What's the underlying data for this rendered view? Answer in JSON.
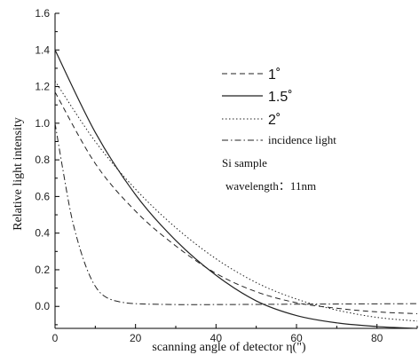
{
  "chart_data": {
    "type": "line",
    "title": "",
    "xlabel": "scanning angle of detector η(\")",
    "ylabel": "Relative light intensity",
    "xlim": [
      0,
      90
    ],
    "ylim": [
      -0.12,
      1.6
    ],
    "xticks": [
      0,
      20,
      40,
      60,
      80
    ],
    "yticks": [
      0.0,
      0.2,
      0.4,
      0.6,
      0.8,
      1.0,
      1.2,
      1.4,
      1.6
    ],
    "xtick_labels": [
      "0",
      "20",
      "40",
      "60",
      "80"
    ],
    "ytick_labels": [
      "0.0",
      "0.2",
      "0.4",
      "0.6",
      "0.8",
      "1.0",
      "1.2",
      "1.4",
      "1.6"
    ],
    "grid": false,
    "legend_position": "top-right",
    "annotations": [
      "Si sample",
      "wavelength：11nm"
    ],
    "series": [
      {
        "name": "1˚",
        "style": "dashed",
        "x": [
          0,
          10,
          20,
          30,
          40,
          50,
          60,
          70,
          80,
          90
        ],
        "y": [
          1.17,
          0.78,
          0.52,
          0.33,
          0.18,
          0.08,
          0.02,
          -0.01,
          -0.03,
          -0.04
        ]
      },
      {
        "name": "1.5˚",
        "style": "solid",
        "x": [
          0,
          10,
          20,
          30,
          40,
          50,
          60,
          70,
          80,
          90
        ],
        "y": [
          1.4,
          0.95,
          0.61,
          0.36,
          0.17,
          0.03,
          -0.05,
          -0.09,
          -0.11,
          -0.12
        ]
      },
      {
        "name": "2˚",
        "style": "dotted",
        "x": [
          0,
          10,
          20,
          30,
          40,
          50,
          60,
          70,
          80,
          90
        ],
        "y": [
          1.23,
          0.9,
          0.64,
          0.43,
          0.26,
          0.13,
          0.04,
          -0.02,
          -0.06,
          -0.08
        ]
      },
      {
        "name": "incidence light",
        "style": "dashdot",
        "x": [
          0,
          2,
          4,
          6,
          8,
          10,
          12,
          15,
          20,
          30,
          40,
          60,
          90
        ],
        "y": [
          1.0,
          0.74,
          0.5,
          0.33,
          0.2,
          0.11,
          0.06,
          0.03,
          0.015,
          0.01,
          0.01,
          0.012,
          0.015
        ]
      }
    ]
  }
}
